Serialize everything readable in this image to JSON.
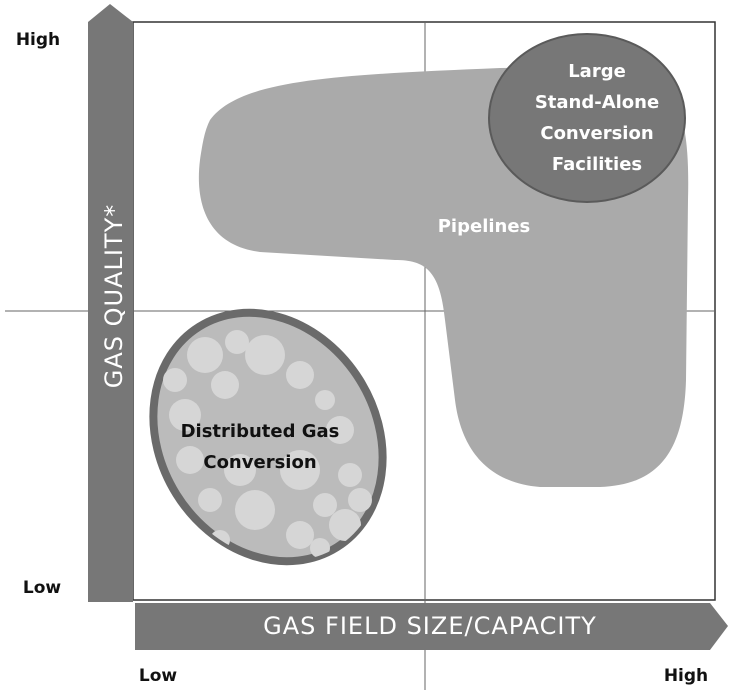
{
  "axes": {
    "y_label": "GAS QUALITY*",
    "x_label": "GAS FIELD SIZE/CAPACITY",
    "y_high": "High",
    "y_low": "Low",
    "x_low": "Low",
    "x_high": "High"
  },
  "regions": [
    {
      "lines": [
        "Large",
        "Stand-Alone",
        "Conversion",
        "Facilities"
      ]
    },
    {
      "lines": [
        "Pipelines"
      ]
    },
    {
      "lines": [
        "Distributed Gas",
        "Conversion"
      ]
    }
  ]
}
